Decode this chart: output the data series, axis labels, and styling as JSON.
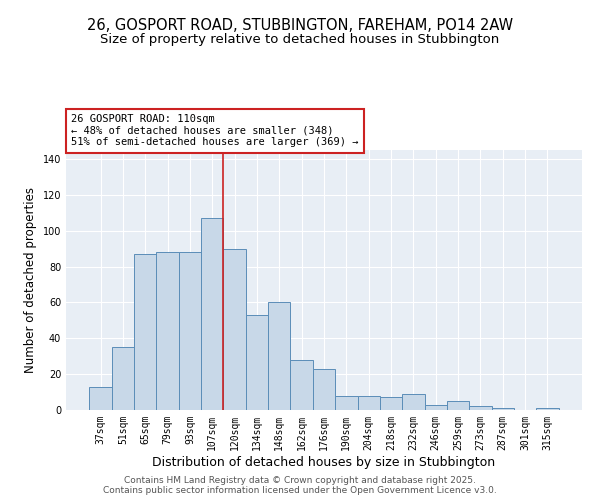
{
  "title1": "26, GOSPORT ROAD, STUBBINGTON, FAREHAM, PO14 2AW",
  "title2": "Size of property relative to detached houses in Stubbington",
  "xlabel": "Distribution of detached houses by size in Stubbington",
  "ylabel": "Number of detached properties",
  "categories": [
    "37sqm",
    "51sqm",
    "65sqm",
    "79sqm",
    "93sqm",
    "107sqm",
    "120sqm",
    "134sqm",
    "148sqm",
    "162sqm",
    "176sqm",
    "190sqm",
    "204sqm",
    "218sqm",
    "232sqm",
    "246sqm",
    "259sqm",
    "273sqm",
    "287sqm",
    "301sqm",
    "315sqm"
  ],
  "values": [
    13,
    35,
    87,
    88,
    88,
    107,
    90,
    53,
    60,
    28,
    23,
    8,
    8,
    7,
    9,
    3,
    5,
    2,
    1,
    0,
    1
  ],
  "bar_color": "#c8d8e8",
  "bar_edge_color": "#5b8db8",
  "bar_edge_width": 0.7,
  "vline_x_index": 5.5,
  "vline_color": "#cc2222",
  "annotation_line1": "26 GOSPORT ROAD: 110sqm",
  "annotation_line2": "← 48% of detached houses are smaller (348)",
  "annotation_line3": "51% of semi-detached houses are larger (369) →",
  "annotation_box_color": "#ffffff",
  "annotation_box_edge": "#cc2222",
  "ylim": [
    0,
    145
  ],
  "yticks": [
    0,
    20,
    40,
    60,
    80,
    100,
    120,
    140
  ],
  "background_color": "#e8eef5",
  "footer_line1": "Contains HM Land Registry data © Crown copyright and database right 2025.",
  "footer_line2": "Contains public sector information licensed under the Open Government Licence v3.0.",
  "title1_fontsize": 10.5,
  "title2_fontsize": 9.5,
  "xlabel_fontsize": 9,
  "ylabel_fontsize": 8.5,
  "annot_fontsize": 7.5,
  "tick_fontsize": 7,
  "footer_fontsize": 6.5
}
